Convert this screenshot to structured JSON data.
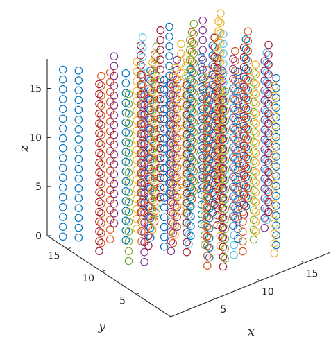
{
  "chart_data": {
    "type": "scatter",
    "subtype": "3d-scatter",
    "marker": "circle",
    "title": "",
    "xlabel": "x",
    "ylabel": "y",
    "zlabel": "z",
    "xlim": [
      0,
      18
    ],
    "ylim": [
      0,
      18
    ],
    "zlim": [
      0,
      18
    ],
    "xticks": [
      "5",
      "10",
      "15"
    ],
    "yticks": [
      "5",
      "10",
      "15"
    ],
    "zticks": [
      "0",
      "5",
      "10",
      "15"
    ],
    "grid": false,
    "legend": "none",
    "colors": [
      "#0072BD",
      "#D95319",
      "#EDB120",
      "#7E2F8E",
      "#77AC30",
      "#4DBEEE",
      "#A2142F"
    ],
    "z_values": [
      0,
      1,
      2,
      3,
      4,
      5,
      6,
      7,
      8,
      9,
      10,
      11,
      12,
      13,
      14,
      15,
      16,
      17
    ],
    "columns": [
      {
        "x": 1,
        "y": 17,
        "color": "#0072BD"
      },
      {
        "x": 2,
        "y": 16,
        "color": "#0072BD"
      },
      {
        "x": 3,
        "y": 14,
        "color": "#D95319"
      },
      {
        "x": 2,
        "y": 13,
        "color": "#A2142F"
      },
      {
        "x": 4,
        "y": 14,
        "color": "#D95319"
      },
      {
        "x": 5,
        "y": 13,
        "color": "#0072BD"
      },
      {
        "x": 3,
        "y": 10,
        "color": "#77AC30"
      },
      {
        "x": 6,
        "y": 16,
        "color": "#7E2F8E"
      },
      {
        "x": 7,
        "y": 14,
        "color": "#EDB120"
      },
      {
        "x": 4,
        "y": 9,
        "color": "#7E2F8E"
      },
      {
        "x": 6,
        "y": 12,
        "color": "#D95319"
      },
      {
        "x": 6,
        "y": 11,
        "color": "#A2142F"
      },
      {
        "x": 7,
        "y": 12,
        "color": "#0072BD"
      },
      {
        "x": 8,
        "y": 13,
        "color": "#EDB120"
      },
      {
        "x": 9,
        "y": 16,
        "color": "#A2142F"
      },
      {
        "x": 9,
        "y": 14,
        "color": "#D95319"
      },
      {
        "x": 7,
        "y": 10,
        "color": "#0072BD"
      },
      {
        "x": 7,
        "y": 9,
        "color": "#7E2F8E"
      },
      {
        "x": 8,
        "y": 10,
        "color": "#D95319"
      },
      {
        "x": 8,
        "y": 8,
        "color": "#A2142F"
      },
      {
        "x": 9,
        "y": 11,
        "color": "#EDB120"
      },
      {
        "x": 9,
        "y": 9,
        "color": "#4DBEEE"
      },
      {
        "x": 10,
        "y": 17,
        "color": "#4DBEEE"
      },
      {
        "x": 10,
        "y": 15,
        "color": "#77AC30"
      },
      {
        "x": 10,
        "y": 12,
        "color": "#7E2F8E"
      },
      {
        "x": 10,
        "y": 10,
        "color": "#0072BD"
      },
      {
        "x": 10,
        "y": 8,
        "color": "#77AC30"
      },
      {
        "x": 9,
        "y": 6,
        "color": "#0072BD"
      },
      {
        "x": 8,
        "y": 5,
        "color": "#D95319"
      },
      {
        "x": 9,
        "y": 4,
        "color": "#A2142F"
      },
      {
        "x": 10,
        "y": 5,
        "color": "#77AC30"
      },
      {
        "x": 11,
        "y": 12,
        "color": "#EDB120"
      },
      {
        "x": 11,
        "y": 9,
        "color": "#D95319"
      },
      {
        "x": 11,
        "y": 7,
        "color": "#EDB120"
      },
      {
        "x": 11,
        "y": 5,
        "color": "#4DBEEE"
      },
      {
        "x": 12,
        "y": 17,
        "color": "#A2142F"
      },
      {
        "x": 12,
        "y": 14,
        "color": "#EDB120"
      },
      {
        "x": 12,
        "y": 11,
        "color": "#0072BD"
      },
      {
        "x": 12,
        "y": 8,
        "color": "#7E2F8E"
      },
      {
        "x": 12,
        "y": 5,
        "color": "#D95319"
      },
      {
        "x": 13,
        "y": 17,
        "color": "#0072BD"
      },
      {
        "x": 13,
        "y": 14,
        "color": "#77AC30"
      },
      {
        "x": 13,
        "y": 10,
        "color": "#A2142F"
      },
      {
        "x": 13,
        "y": 7,
        "color": "#0072BD"
      },
      {
        "x": 14,
        "y": 15,
        "color": "#D95319"
      },
      {
        "x": 14,
        "y": 12,
        "color": "#0072BD"
      },
      {
        "x": 14,
        "y": 9,
        "color": "#7E2F8E"
      },
      {
        "x": 14,
        "y": 6,
        "color": "#77AC30"
      },
      {
        "x": 14,
        "y": 3,
        "color": "#EDB120"
      },
      {
        "x": 15,
        "y": 16,
        "color": "#77AC30"
      },
      {
        "x": 15,
        "y": 13,
        "color": "#A2142F"
      },
      {
        "x": 15,
        "y": 10,
        "color": "#D95319"
      },
      {
        "x": 15,
        "y": 7,
        "color": "#EDB120"
      },
      {
        "x": 15,
        "y": 4,
        "color": "#0072BD"
      },
      {
        "x": 16,
        "y": 16,
        "color": "#7E2F8E"
      },
      {
        "x": 16,
        "y": 13,
        "color": "#4DBEEE"
      },
      {
        "x": 16,
        "y": 10,
        "color": "#A2142F"
      },
      {
        "x": 16,
        "y": 7,
        "color": "#7E2F8E"
      },
      {
        "x": 17,
        "y": 15,
        "color": "#EDB120"
      },
      {
        "x": 17,
        "y": 11,
        "color": "#0072BD"
      },
      {
        "x": 17,
        "y": 8,
        "color": "#4DBEEE"
      },
      {
        "x": 18,
        "y": 16,
        "color": "#EDB120"
      },
      {
        "x": 18,
        "y": 12,
        "color": "#D95319"
      },
      {
        "x": 18,
        "y": 9,
        "color": "#A2142F"
      }
    ]
  }
}
